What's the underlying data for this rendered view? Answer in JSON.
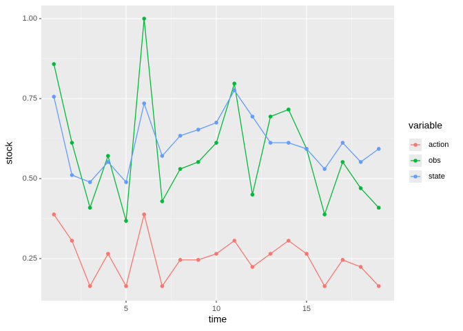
{
  "chart_data": {
    "type": "line",
    "x_label": "time",
    "y_label": "stock",
    "x": [
      1,
      2,
      3,
      4,
      5,
      6,
      7,
      8,
      9,
      10,
      11,
      12,
      13,
      14,
      15,
      16,
      17,
      18,
      19
    ],
    "series": [
      {
        "name": "action",
        "color": "#F8766D",
        "values": [
          0.388,
          0.306,
          0.164,
          0.265,
          0.164,
          0.388,
          0.164,
          0.246,
          0.246,
          0.265,
          0.306,
          0.224,
          0.265,
          0.306,
          0.265,
          0.164,
          0.246,
          0.224,
          0.164
        ]
      },
      {
        "name": "obs",
        "color": "#00BA38",
        "values": [
          0.858,
          0.612,
          0.409,
          0.571,
          0.368,
          1.0,
          0.429,
          0.53,
          0.552,
          0.612,
          0.797,
          0.45,
          0.694,
          0.716,
          0.593,
          0.388,
          0.552,
          0.47,
          0.409
        ]
      },
      {
        "name": "state",
        "color": "#619CFF",
        "values": [
          0.756,
          0.511,
          0.489,
          0.552,
          0.489,
          0.735,
          0.571,
          0.634,
          0.653,
          0.675,
          0.776,
          0.694,
          0.612,
          0.612,
          0.593,
          0.53,
          0.612,
          0.552,
          0.593
        ]
      }
    ],
    "legend_title": "variable",
    "legend": "right",
    "grid": true,
    "xlim": [
      0.305,
      19.85
    ],
    "xticks": [
      5,
      10,
      15
    ],
    "ylim": [
      0.1185,
      1.041
    ],
    "yticks": [
      {
        "value": 0.25,
        "label": "0.25"
      },
      {
        "value": 0.5,
        "label": "0.50"
      },
      {
        "value": 0.75,
        "label": "0.75"
      },
      {
        "value": 1.0,
        "label": "1.00"
      }
    ]
  }
}
